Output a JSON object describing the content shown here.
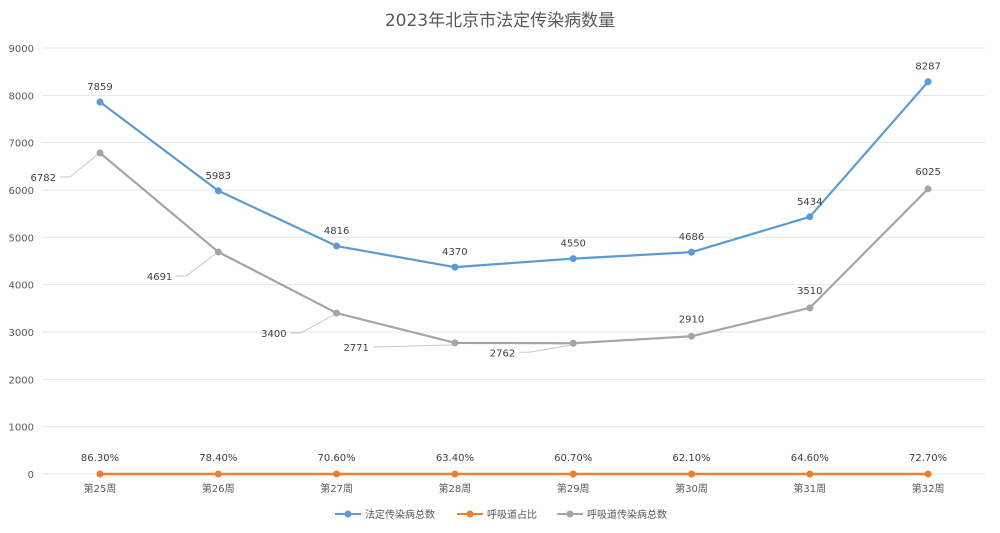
{
  "chart_data": {
    "type": "line",
    "title": "2023年北京市法定传染病数量",
    "categories": [
      "第25周",
      "第26周",
      "第27周",
      "第28周",
      "第29周",
      "第30周",
      "第31周",
      "第32周"
    ],
    "y_ticks": [
      "0",
      "1000",
      "2000",
      "3000",
      "4000",
      "5000",
      "6000",
      "7000",
      "8000",
      "9000"
    ],
    "ylim": [
      0,
      9000
    ],
    "grid": true,
    "legend_position": "bottom",
    "series": [
      {
        "name": "法定传染病总数",
        "color": "#5b9bd5",
        "values": [
          7859,
          5983,
          4816,
          4370,
          4550,
          4686,
          5434,
          8287
        ],
        "labels": [
          "7859",
          "5983",
          "4816",
          "4370",
          "4550",
          "4686",
          "5434",
          "8287"
        ]
      },
      {
        "name": "呼吸道占比",
        "color": "#ed7d31",
        "values": [
          86.3,
          78.4,
          70.6,
          63.4,
          60.7,
          62.1,
          64.6,
          72.7
        ],
        "labels": [
          "86.30%",
          "78.40%",
          "70.60%",
          "63.40%",
          "60.70%",
          "62.10%",
          "64.60%",
          "72.70%"
        ]
      },
      {
        "name": "呼吸道传染病总数",
        "color": "#a5a5a5",
        "values": [
          6782,
          4691,
          3400,
          2771,
          2762,
          2910,
          3510,
          6025
        ],
        "labels": [
          "6782",
          "4691",
          "3400",
          "2771",
          "2762",
          "2910",
          "3510",
          "6025"
        ]
      }
    ]
  }
}
